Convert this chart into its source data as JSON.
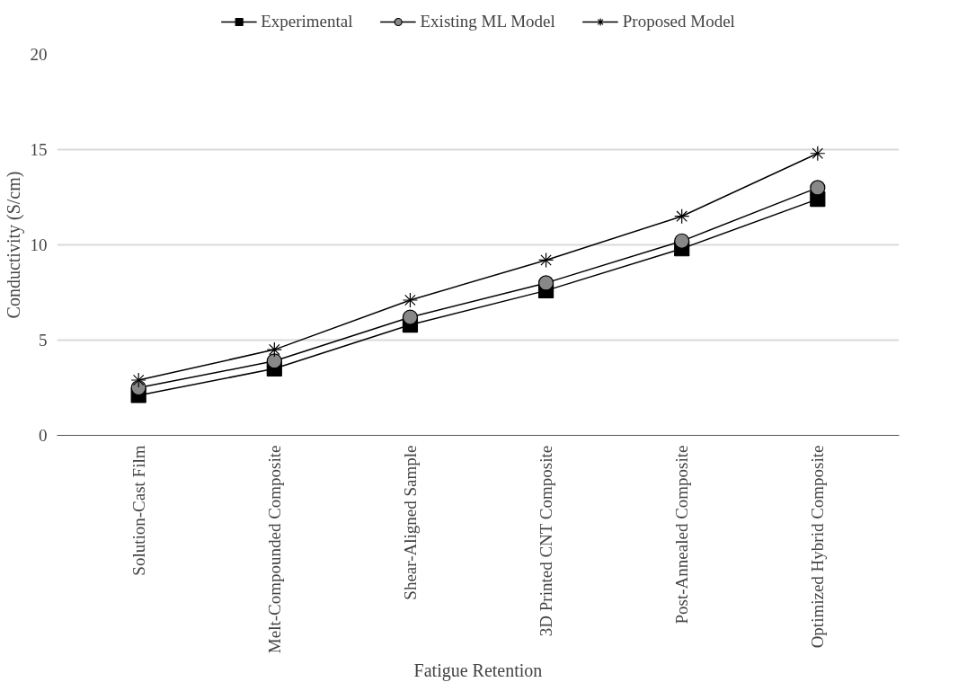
{
  "chart_data": {
    "type": "line",
    "xlabel": "Fatigue Retention",
    "ylabel": "Conductivity (S/cm)",
    "categories": [
      "Solution-Cast Film",
      "Melt-Compounded Composite",
      "Shear-Aligned Sample",
      "3D Printed CNT Composite",
      "Post-Annealed Composite",
      "Optimized Hybrid Composite"
    ],
    "series": [
      {
        "name": "Experimental",
        "color": "#000000",
        "marker": "square",
        "values": [
          2.1,
          3.5,
          5.8,
          7.6,
          9.8,
          12.4
        ]
      },
      {
        "name": "Existing ML Model",
        "color": "#000000",
        "marker": "circle",
        "values": [
          2.5,
          3.9,
          6.2,
          8.0,
          10.2,
          13.0
        ]
      },
      {
        "name": "Proposed Model",
        "color": "#000000",
        "marker": "cross",
        "values": [
          2.9,
          4.5,
          7.1,
          9.2,
          11.5,
          14.8
        ]
      }
    ],
    "ylim": [
      0,
      20
    ],
    "yticks": [
      0,
      5,
      10,
      15,
      20
    ],
    "grid": "y",
    "legend": "top",
    "line_style": "solid"
  }
}
